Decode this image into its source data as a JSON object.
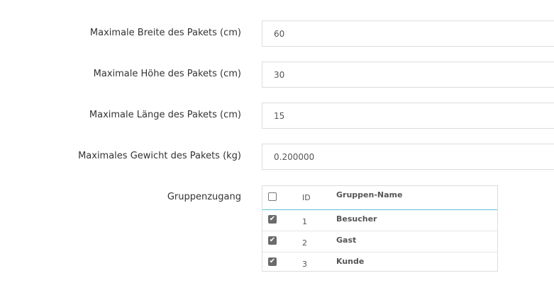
{
  "fields": [
    {
      "label": "Maximale Breite des Pakets (cm)",
      "value": "60"
    },
    {
      "label": "Maximale Höhe des Pakets (cm)",
      "value": "30"
    },
    {
      "label": "Maximale Länge des Pakets (cm)",
      "value": "15"
    },
    {
      "label": "Maximales Gewicht des Pakets (kg)",
      "value": "0.200000"
    }
  ],
  "groups": {
    "label": "Gruppenzugang",
    "columns": {
      "id": "ID",
      "name": "Gruppen-Name"
    },
    "select_all_checked": false,
    "rows": [
      {
        "id": "1",
        "name": "Besucher",
        "checked": true
      },
      {
        "id": "2",
        "name": "Gast",
        "checked": true
      },
      {
        "id": "3",
        "name": "Kunde",
        "checked": true
      }
    ]
  }
}
